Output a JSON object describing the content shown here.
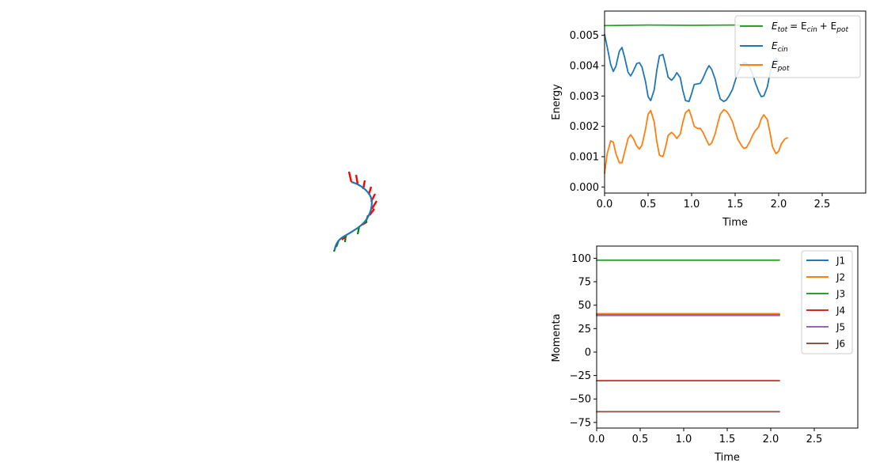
{
  "chart_data": [
    {
      "type": "line",
      "subplot": "3d-curve",
      "title": "",
      "description_free": true
    },
    {
      "type": "line",
      "subplot": "energy",
      "xlabel": "Time",
      "ylabel": "Energy",
      "xlim": [
        0,
        3.0
      ],
      "ylim": [
        -0.0002,
        0.0058
      ],
      "xticks": [
        "0.0",
        "0.5",
        "1.0",
        "1.5",
        "2.0",
        "2.5"
      ],
      "yticks": [
        "0.000",
        "0.001",
        "0.002",
        "0.003",
        "0.004",
        "0.005"
      ],
      "legend_position": "top-right",
      "series": [
        {
          "name": "E_tot = E_cin + E_pot",
          "legend_main": "E",
          "legend_sub": "tot",
          "legend_rest": "= E",
          "legend_sub2": "cin",
          "legend_rest2": "+ E",
          "legend_sub3": "pot",
          "color": "#2ca02c",
          "x": [
            0.0,
            0.5,
            1.0,
            1.5,
            1.8
          ],
          "y": [
            0.00532,
            0.00534,
            0.00533,
            0.00534,
            0.00533
          ]
        },
        {
          "name": "E_cin",
          "legend_main": "E",
          "legend_sub": "cin",
          "color": "#1f77b4",
          "x": [
            0.0,
            0.03,
            0.07,
            0.1,
            0.13,
            0.17,
            0.2,
            0.23,
            0.27,
            0.3,
            0.33,
            0.37,
            0.4,
            0.43,
            0.47,
            0.5,
            0.53,
            0.57,
            0.6,
            0.63,
            0.67,
            0.7,
            0.73,
            0.77,
            0.8,
            0.83,
            0.87,
            0.9,
            0.93,
            0.97,
            1.0,
            1.03,
            1.07,
            1.1,
            1.13,
            1.17,
            1.2,
            1.23,
            1.27,
            1.3,
            1.33,
            1.37,
            1.4,
            1.43,
            1.47,
            1.5,
            1.53,
            1.57,
            1.6,
            1.63,
            1.67,
            1.7,
            1.73,
            1.77,
            1.8,
            1.83,
            1.87,
            1.9,
            1.93,
            1.97,
            2.0
          ],
          "y": [
            0.00503,
            0.00462,
            0.00404,
            0.00381,
            0.00398,
            0.00448,
            0.0046,
            0.00428,
            0.00378,
            0.00366,
            0.00382,
            0.00407,
            0.0041,
            0.00395,
            0.00348,
            0.00298,
            0.00285,
            0.0032,
            0.00385,
            0.00432,
            0.00437,
            0.00402,
            0.00362,
            0.00352,
            0.00362,
            0.00377,
            0.0036,
            0.00317,
            0.00285,
            0.00282,
            0.00308,
            0.00338,
            0.0034,
            0.00342,
            0.00358,
            0.00385,
            0.004,
            0.00388,
            0.00356,
            0.0032,
            0.0029,
            0.00282,
            0.00287,
            0.003,
            0.00322,
            0.0035,
            0.00376,
            0.00398,
            0.0041,
            0.00408,
            0.00394,
            0.00373,
            0.00345,
            0.00315,
            0.00298,
            0.003,
            0.0033,
            0.00375,
            0.00412,
            0.00425,
            0.00415
          ]
        },
        {
          "name": "E_pot",
          "legend_main": "E",
          "legend_sub": "pot",
          "color": "#ff7f0e",
          "x": [
            0.0,
            0.03,
            0.07,
            0.1,
            0.13,
            0.17,
            0.2,
            0.23,
            0.27,
            0.3,
            0.33,
            0.37,
            0.4,
            0.43,
            0.47,
            0.5,
            0.53,
            0.57,
            0.6,
            0.63,
            0.67,
            0.7,
            0.73,
            0.77,
            0.8,
            0.83,
            0.87,
            0.9,
            0.93,
            0.97,
            1.0,
            1.03,
            1.07,
            1.1,
            1.13,
            1.17,
            1.2,
            1.23,
            1.27,
            1.3,
            1.33,
            1.37,
            1.4,
            1.43,
            1.47,
            1.5,
            1.53,
            1.57,
            1.6,
            1.63,
            1.67,
            1.7,
            1.73,
            1.77,
            1.8,
            1.83,
            1.87,
            1.9,
            1.93,
            1.97,
            2.0,
            2.03,
            2.07,
            2.1
          ],
          "y": [
            0.00045,
            0.0011,
            0.00152,
            0.00148,
            0.0011,
            0.0008,
            0.0008,
            0.00115,
            0.0016,
            0.00172,
            0.0016,
            0.00135,
            0.00125,
            0.00138,
            0.0019,
            0.0024,
            0.00252,
            0.00215,
            0.0015,
            0.00105,
            0.001,
            0.0013,
            0.0017,
            0.0018,
            0.00172,
            0.0016,
            0.00175,
            0.00215,
            0.00245,
            0.00255,
            0.0023,
            0.002,
            0.00193,
            0.00193,
            0.0018,
            0.00155,
            0.00138,
            0.00145,
            0.00175,
            0.0021,
            0.0024,
            0.00255,
            0.0025,
            0.00238,
            0.00215,
            0.00185,
            0.00158,
            0.00138,
            0.00127,
            0.0013,
            0.0015,
            0.0017,
            0.00185,
            0.00198,
            0.00225,
            0.00238,
            0.00222,
            0.0018,
            0.00132,
            0.0011,
            0.00118,
            0.00142,
            0.00158,
            0.00162
          ]
        }
      ]
    },
    {
      "type": "line",
      "subplot": "momenta",
      "xlabel": "Time",
      "ylabel": "Momenta",
      "xlim": [
        0,
        3.0
      ],
      "ylim": [
        -81,
        113
      ],
      "xticks": [
        "0.0",
        "0.5",
        "1.0",
        "1.5",
        "2.0",
        "2.5"
      ],
      "yticks": [
        "100",
        "75",
        "50",
        "25",
        "0",
        "−25",
        "−50",
        "−75"
      ],
      "legend_position": "top-right",
      "series": [
        {
          "name": "J1",
          "color": "#1f77b4",
          "x": [
            0.0,
            2.1
          ],
          "y": [
            40.0,
            40.0
          ]
        },
        {
          "name": "J2",
          "color": "#ff7f0e",
          "x": [
            0.0,
            2.1
          ],
          "y": [
            41.0,
            41.0
          ]
        },
        {
          "name": "J3",
          "color": "#2ca02c",
          "x": [
            0.0,
            2.1
          ],
          "y": [
            98.0,
            98.0
          ]
        },
        {
          "name": "J4",
          "color": "#d62728",
          "x": [
            0.0,
            2.1
          ],
          "y": [
            -30.5,
            -30.5
          ]
        },
        {
          "name": "J5",
          "color": "#9467bd",
          "x": [
            0.0,
            2.1
          ],
          "y": [
            39.0,
            39.0
          ]
        },
        {
          "name": "J6",
          "color": "#8c564b",
          "x": [
            0.0,
            2.1
          ],
          "y": [
            -63.5,
            -63.5
          ]
        }
      ]
    }
  ]
}
